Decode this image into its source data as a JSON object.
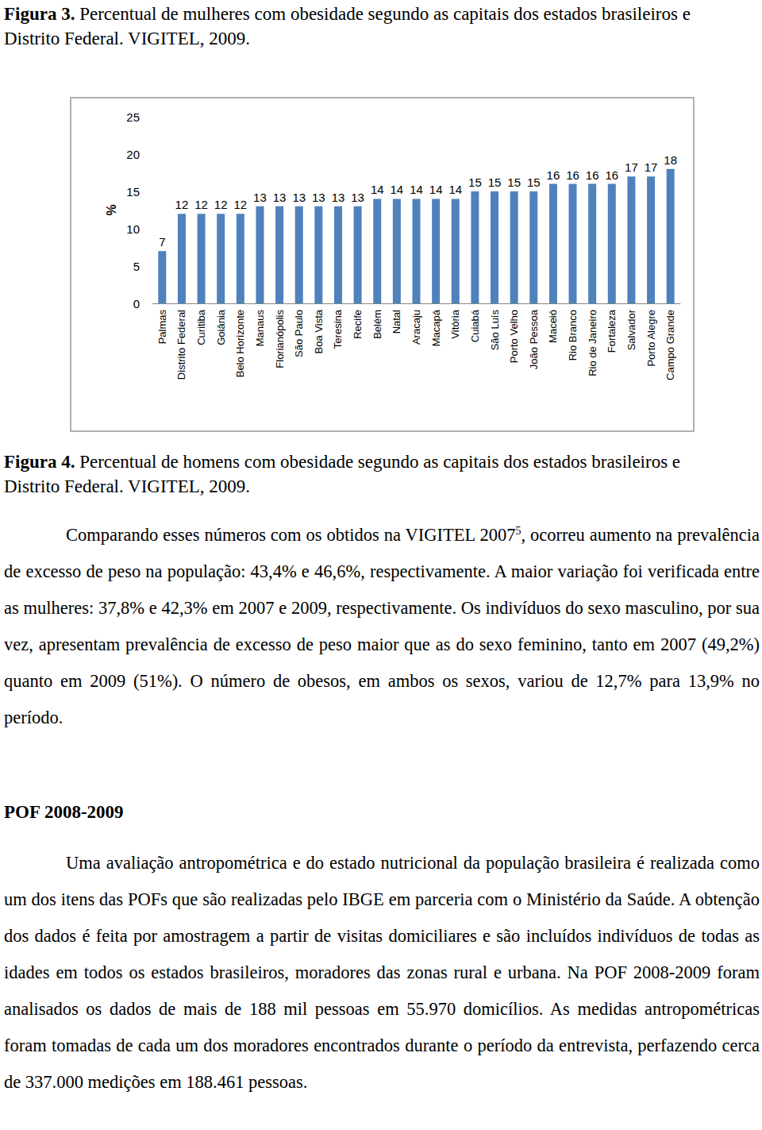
{
  "figure3": {
    "label": "Figura 3.",
    "caption": "Percentual de mulheres com obesidade segundo as capitais dos estados brasileiros e Distrito Federal. VIGITEL, 2009."
  },
  "chart_data": {
    "type": "bar",
    "ylabel": "%",
    "categories": [
      "Palmas",
      "Distrito Federal",
      "Curitiba",
      "Goiânia",
      "Belo Horizonte",
      "Manaus",
      "Florianópolis",
      "São Paulo",
      "Boa Vista",
      "Teresina",
      "Recife",
      "Belém",
      "Natal",
      "Aracaju",
      "Macapá",
      "Vitória",
      "Cuiabá",
      "São Luís",
      "Porto Velho",
      "João Pessoa",
      "Maceió",
      "Rio Branco",
      "Rio de Janeiro",
      "Fortaleza",
      "Salvador",
      "Porto Alegre",
      "Campo Grande"
    ],
    "values": [
      7,
      12,
      12,
      12,
      12,
      13,
      13,
      13,
      13,
      13,
      13,
      14,
      14,
      14,
      14,
      14,
      15,
      15,
      15,
      15,
      16,
      16,
      16,
      16,
      17,
      17,
      18
    ],
    "color": "#4f81bd",
    "ylim": [
      0,
      25
    ],
    "yticks": [
      0,
      5,
      10,
      15,
      20,
      25
    ],
    "data_labels": true,
    "grid": false
  },
  "figure4": {
    "label": "Figura 4.",
    "caption": "Percentual de homens com obesidade segundo as capitais dos estados brasileiros e Distrito Federal. VIGITEL, 2009."
  },
  "paragraph1": {
    "before": "Comparando esses números com os obtidos na VIGITEL 2007",
    "sup": "5",
    "after": ", ocorreu aumento na prevalência de excesso de peso na população: 43,4% e 46,6%, respectivamente. A maior variação foi verificada entre as mulheres: 37,8% e 42,3% em 2007 e 2009, respectivamente. Os indivíduos do sexo masculino, por sua vez, apresentam prevalência de excesso de peso maior que as do sexo feminino, tanto em 2007 (49,2%) quanto em 2009 (51%). O número de obesos, em ambos os sexos, variou de 12,7% para 13,9% no período."
  },
  "section_heading": "POF 2008-2009",
  "paragraph2": "Uma avaliação antropométrica e do estado nutricional da população brasileira é realizada como um dos itens das POFs que são realizadas pelo IBGE em parceria com o Ministério da Saúde. A obtenção dos dados é feita por amostragem a partir de visitas domiciliares e são incluídos indivíduos de todas as idades em todos os estados brasileiros, moradores das zonas rural e urbana. Na POF 2008-2009 foram analisados os dados de mais de 188 mil pessoas em 55.970 domicílios. As medidas antropométricas foram tomadas de cada um dos moradores encontrados durante o período da entrevista, perfazendo cerca de 337.000 medições em 188.461 pessoas."
}
